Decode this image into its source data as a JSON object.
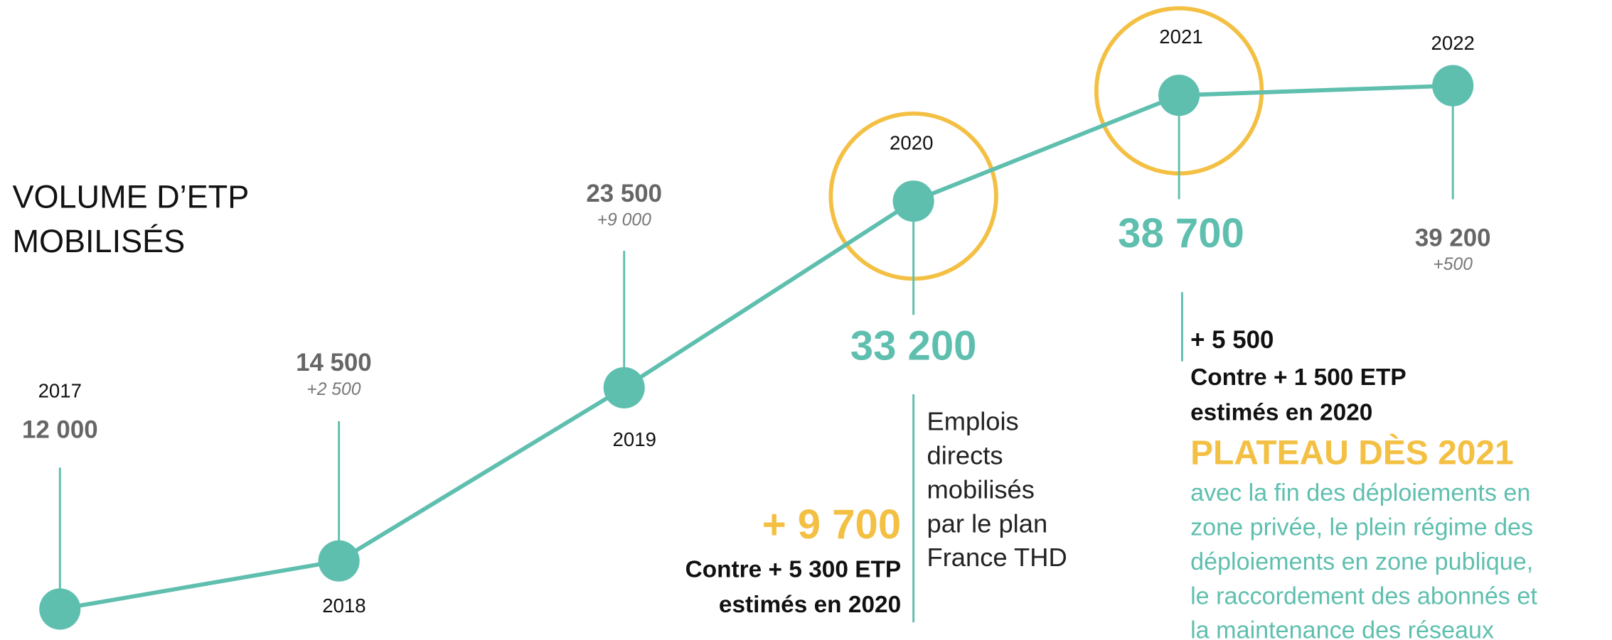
{
  "chart_data": {
    "type": "line",
    "title_lines": [
      "VOLUME D’ETP",
      "MOBILISÉS"
    ],
    "categories": [
      "2017",
      "2018",
      "2019",
      "2020",
      "2021",
      "2022"
    ],
    "values": [
      12000,
      14500,
      23500,
      33200,
      38700,
      39200
    ],
    "value_labels": [
      "12 000",
      "14 500",
      "23 500",
      "33 200",
      "38 700",
      "39 200"
    ],
    "deltas": [
      null,
      2500,
      9000,
      9700,
      5500,
      500
    ],
    "delta_labels": [
      null,
      "+2 500",
      "+9 000",
      "+ 9 700",
      "+ 5 500",
      "+500"
    ],
    "color": "#5fbfaf",
    "highlight_color": "#f3c044",
    "annotations": [
      {
        "text_lines": [
          "Emplois",
          "directs",
          "mobilisés",
          "par le plan",
          "France THD"
        ],
        "note_lines": [
          "Contre + 5 300 ETP",
          "estimés en 2020"
        ]
      },
      {
        "note_lines": [
          "Contre + 1 500 ETP",
          "estimés en 2020"
        ],
        "headline": "PLATEAU DÈS 2021",
        "text_lines": [
          "avec la fin des déploiements en",
          "zone privée, le plein régime des",
          "déploiements en zone publique,",
          "le raccordement des abonnés et",
          "la maintenance des réseaux"
        ]
      }
    ]
  }
}
